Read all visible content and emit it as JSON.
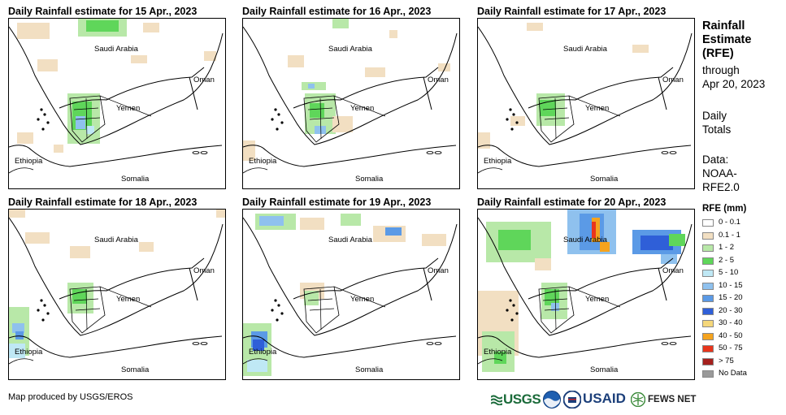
{
  "panels": [
    {
      "title": "Daily Rainfall estimate for 15 Apr., 2023",
      "labels": {
        "saudi": "Saudi Arabia",
        "oman": "Oman",
        "yemen": "Yemen",
        "ethiopia": "Ethiopia",
        "somalia": "Somalia"
      }
    },
    {
      "title": "Daily Rainfall estimate for 16 Apr., 2023",
      "labels": {
        "saudi": "Saudi Arabia",
        "oman": "Oman",
        "yemen": "Yemen",
        "ethiopia": "Ethiopia",
        "somalia": "Somalia"
      }
    },
    {
      "title": "Daily Rainfall estimate for 17 Apr., 2023",
      "labels": {
        "saudi": "Saudi Arabia",
        "oman": "Oman",
        "yemen": "Yemen",
        "ethiopia": "Ethiopia",
        "somalia": "Somalia"
      }
    },
    {
      "title": "Daily Rainfall estimate for 18 Apr., 2023",
      "labels": {
        "saudi": "Saudi Arabia",
        "oman": "Oman",
        "yemen": "Yemen",
        "ethiopia": "Ethiopia",
        "somalia": "Somalia"
      }
    },
    {
      "title": "Daily Rainfall estimate for 19 Apr., 2023",
      "labels": {
        "saudi": "Saudi Arabia",
        "oman": "Oman",
        "yemen": "Yemen",
        "ethiopia": "Ethiopia",
        "somalia": "Somalia"
      }
    },
    {
      "title": "Daily Rainfall estimate for 20 Apr., 2023",
      "labels": {
        "saudi": "Saudi Arabia",
        "oman": "Oman",
        "yemen": "Yemen",
        "ethiopia": "Ethiopia",
        "somalia": "Somalia"
      }
    }
  ],
  "sidebar": {
    "title_lines": [
      "Rainfall",
      "Estimate",
      "(RFE)"
    ],
    "through_lines": [
      "through",
      "Apr 20, 2023"
    ],
    "daily_lines": [
      "Daily",
      "Totals"
    ],
    "data_lines": [
      "Data:",
      "NOAA-",
      "RFE2.0"
    ]
  },
  "legend": {
    "title": "RFE (mm)",
    "items": [
      {
        "label": "0 - 0.1",
        "color": "#ffffff"
      },
      {
        "label": "0.1 - 1",
        "color": "#f2dfc2"
      },
      {
        "label": "1 - 2",
        "color": "#b8e8a8"
      },
      {
        "label": "2 - 5",
        "color": "#5fd65a"
      },
      {
        "label": "5 - 10",
        "color": "#bfe8f5"
      },
      {
        "label": "10 - 15",
        "color": "#8fc1ee"
      },
      {
        "label": "15 - 20",
        "color": "#5b9ae6"
      },
      {
        "label": "20 - 30",
        "color": "#2f5fd8"
      },
      {
        "label": "30 - 40",
        "color": "#f5d77a"
      },
      {
        "label": "40 - 50",
        "color": "#f5a31e"
      },
      {
        "label": "50 - 75",
        "color": "#e8351c"
      },
      {
        "label": "> 75",
        "color": "#a5201d"
      },
      {
        "label": "No Data",
        "color": "#9a9a9a"
      }
    ]
  },
  "credit": "Map produced by USGS/EROS",
  "logos": {
    "usgs": "USGS",
    "usaid": "USAID",
    "fewsnet": "FEWS NET"
  }
}
